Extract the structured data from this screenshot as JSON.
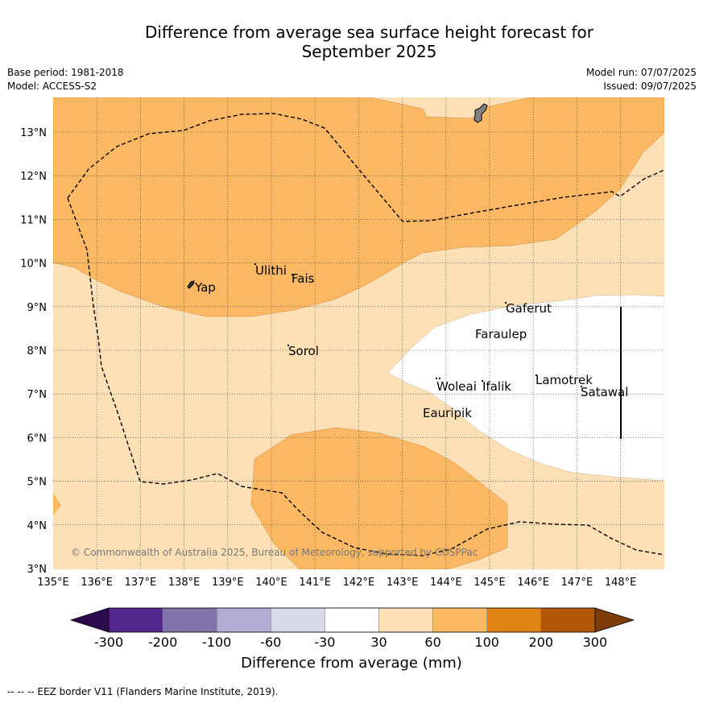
{
  "title_line1": "Difference from average sea surface height forecast for",
  "title_line2": "September 2025",
  "base_period": "Base period: 1981-2018",
  "model": "Model: ACCESS-S2",
  "model_run": "Model run: 07/07/2025",
  "issued": "Issued: 09/07/2025",
  "copyright": "© Commonwealth of Australia 2025, Bureau of Meteorology, supported by COSPPac",
  "lon_labels": [
    "135°E",
    "136°E",
    "137°E",
    "138°E",
    "139°E",
    "140°E",
    "141°E",
    "142°E",
    "143°E",
    "144°E",
    "145°E",
    "146°E",
    "147°E",
    "148°E"
  ],
  "lat_labels": [
    "3°N",
    "4°N",
    "5°N",
    "6°N",
    "7°N",
    "8°N",
    "9°N",
    "10°N",
    "11°N",
    "12°N",
    "13°N"
  ],
  "places": {
    "yap": "Yap",
    "ulithi": "Ulithi",
    "fais": "Fais",
    "sorol": "Sorol",
    "gaferut": "Gaferut",
    "faraulep": "Faraulep",
    "woleai": "Woleai",
    "ifalik": "Ifalik",
    "lamotrek": "Lamotrek",
    "satawal": "Satawal",
    "eauripik": "Eauripik"
  },
  "colorbar": {
    "ticks": [
      "-300",
      "-200",
      "-100",
      "-60",
      "-30",
      "30",
      "60",
      "100",
      "200",
      "300"
    ],
    "title": "Difference from average (mm)",
    "colors": [
      "#2d0a4e",
      "#54278f",
      "#8073ac",
      "#b2abd2",
      "#d8daeb",
      "#ffffff",
      "#fee0b6",
      "#fdb863",
      "#e08214",
      "#b35806",
      "#7f3b08"
    ]
  },
  "footnote": "--  --  -- EEZ border V11 (Flanders Marine Institute, 2019)."
}
